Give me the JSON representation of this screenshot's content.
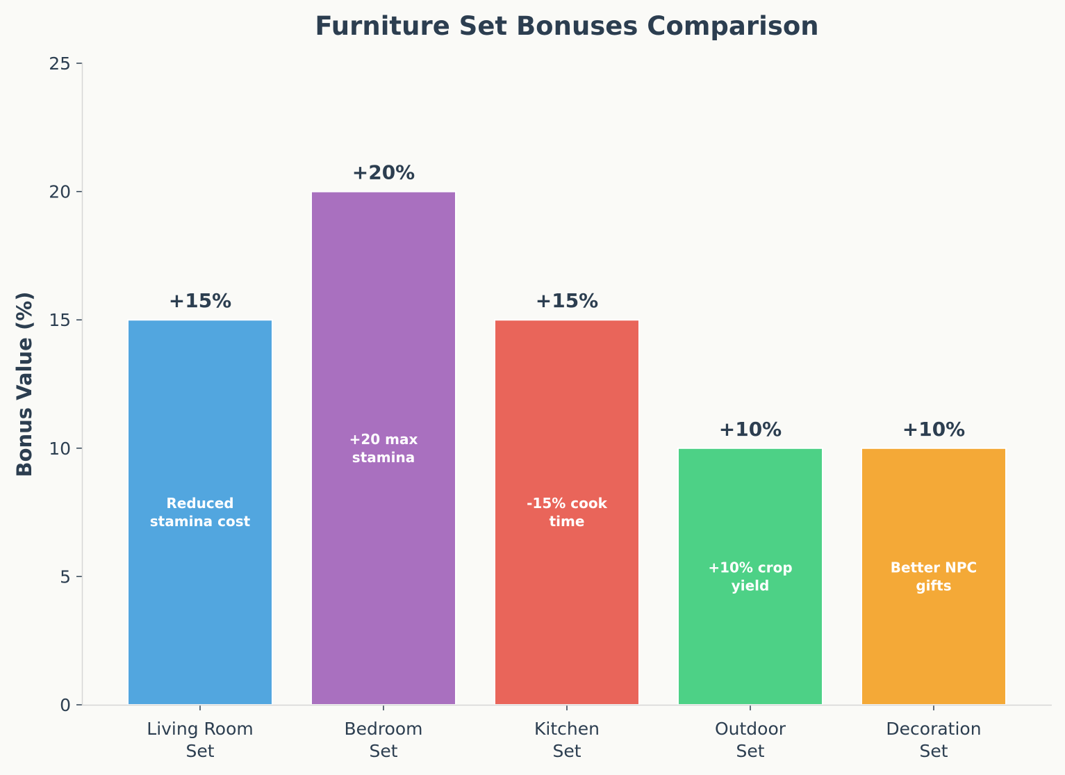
{
  "chart_data": {
    "type": "bar",
    "title": "Furniture Set Bonuses Comparison",
    "xlabel": "",
    "ylabel": "Bonus Value (%)",
    "ylim": [
      0,
      25
    ],
    "yticks": [
      0,
      5,
      10,
      15,
      20,
      25
    ],
    "grid": false,
    "categories": [
      [
        "Living Room",
        "Set"
      ],
      [
        "Bedroom",
        "Set"
      ],
      [
        "Kitchen",
        "Set"
      ],
      [
        "Outdoor",
        "Set"
      ],
      [
        "Decoration",
        "Set"
      ]
    ],
    "values": [
      15,
      20,
      15,
      10,
      10
    ],
    "value_labels": [
      "+15%",
      "+20%",
      "+15%",
      "+10%",
      "+10%"
    ],
    "descriptions": [
      [
        "Reduced",
        "stamina cost"
      ],
      [
        "+20 max",
        "stamina"
      ],
      [
        "-15% cook",
        "time"
      ],
      [
        "+10% crop",
        "yield"
      ],
      [
        "Better NPC",
        "gifts"
      ]
    ],
    "colors": [
      "#52a6df",
      "#a970bf",
      "#e9655a",
      "#4dd186",
      "#f4a937"
    ]
  }
}
